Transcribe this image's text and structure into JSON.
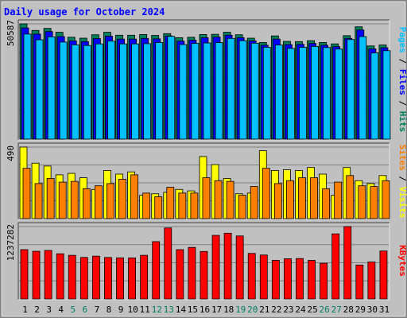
{
  "chart_data": [
    {
      "type": "bar",
      "title": "Daily usage for October 2024",
      "panel": "pages-files-hits",
      "max_label": "50587",
      "ylim": [
        0,
        50587
      ],
      "grid": true,
      "legend": [
        "Pages",
        "/",
        "Files",
        "/",
        "Hits"
      ],
      "series": [
        {
          "name": "Hits",
          "values": [
            50587,
            47700,
            48600,
            46900,
            44700,
            44300,
            45800,
            46900,
            45600,
            45600,
            45900,
            45500,
            46300,
            44500,
            44700,
            45900,
            46000,
            46900,
            45800,
            44300,
            42400,
            45300,
            42900,
            42800,
            43200,
            42400,
            41800,
            45400,
            49300,
            40900,
            41300
          ]
        },
        {
          "name": "Files",
          "values": [
            48800,
            46100,
            47200,
            45000,
            43100,
            42800,
            44100,
            45200,
            43900,
            43900,
            44200,
            44000,
            45300,
            43000,
            43400,
            44500,
            44800,
            45600,
            44500,
            43100,
            41200,
            43900,
            41500,
            41600,
            42000,
            41200,
            40600,
            44200,
            47900,
            39600,
            40100
          ]
        },
        {
          "name": "Pages",
          "values": [
            46100,
            43600,
            44900,
            42600,
            41400,
            41100,
            41800,
            43000,
            41800,
            41800,
            41900,
            42400,
            45100,
            41500,
            42000,
            42200,
            42400,
            44200,
            43200,
            42100,
            40300,
            41300,
            39800,
            40300,
            40700,
            40200,
            39500,
            43700,
            45000,
            37800,
            38800
          ]
        }
      ]
    },
    {
      "type": "bar",
      "panel": "sites-visits",
      "max_label": "490",
      "ylim": [
        0,
        490
      ],
      "grid": true,
      "legend": [
        "Sites",
        "/",
        "Visits"
      ],
      "series": [
        {
          "name": "Visits",
          "values": [
            490,
            380,
            360,
            300,
            310,
            280,
            200,
            330,
            305,
            320,
            160,
            170,
            180,
            200,
            190,
            425,
            370,
            275,
            170,
            175,
            465,
            330,
            335,
            330,
            350,
            305,
            160,
            350,
            260,
            240,
            295
          ]
        },
        {
          "name": "Sites",
          "values": [
            345,
            240,
            275,
            250,
            255,
            205,
            225,
            240,
            270,
            300,
            175,
            150,
            215,
            175,
            175,
            280,
            260,
            255,
            160,
            220,
            345,
            240,
            260,
            280,
            280,
            205,
            250,
            295,
            225,
            220,
            260
          ]
        }
      ]
    },
    {
      "type": "bar",
      "panel": "kbytes",
      "max_label": "1237282",
      "ylim": [
        0,
        1237282
      ],
      "grid": true,
      "legend": [
        "KBytes"
      ],
      "series": [
        {
          "name": "KBytes",
          "values": [
            843000,
            815000,
            829000,
            772000,
            746000,
            710000,
            732000,
            709000,
            703000,
            702000,
            746000,
            980000,
            1214000,
            843000,
            881000,
            812000,
            1087000,
            1124000,
            1077000,
            778000,
            751000,
            660000,
            687000,
            691000,
            659000,
            610000,
            1113000,
            1237282,
            580000,
            631000,
            820000
          ]
        }
      ]
    }
  ],
  "x_labels": [
    {
      "label": "1",
      "weekend": false
    },
    {
      "label": "2",
      "weekend": false
    },
    {
      "label": "3",
      "weekend": false
    },
    {
      "label": "4",
      "weekend": false
    },
    {
      "label": "5",
      "weekend": true
    },
    {
      "label": "6",
      "weekend": true
    },
    {
      "label": "7",
      "weekend": false
    },
    {
      "label": "8",
      "weekend": false
    },
    {
      "label": "9",
      "weekend": false
    },
    {
      "label": "10",
      "weekend": false
    },
    {
      "label": "11",
      "weekend": false
    },
    {
      "label": "12",
      "weekend": true
    },
    {
      "label": "13",
      "weekend": true
    },
    {
      "label": "14",
      "weekend": false
    },
    {
      "label": "15",
      "weekend": false
    },
    {
      "label": "16",
      "weekend": false
    },
    {
      "label": "17",
      "weekend": false
    },
    {
      "label": "18",
      "weekend": false
    },
    {
      "label": "19",
      "weekend": true
    },
    {
      "label": "20",
      "weekend": true
    },
    {
      "label": "21",
      "weekend": false
    },
    {
      "label": "22",
      "weekend": false
    },
    {
      "label": "23",
      "weekend": false
    },
    {
      "label": "24",
      "weekend": false
    },
    {
      "label": "25",
      "weekend": false
    },
    {
      "label": "26",
      "weekend": true
    },
    {
      "label": "27",
      "weekend": true
    },
    {
      "label": "28",
      "weekend": false
    },
    {
      "label": "29",
      "weekend": false
    },
    {
      "label": "30",
      "weekend": false
    },
    {
      "label": "31",
      "weekend": false
    }
  ],
  "colors": {
    "frame": "#808080",
    "frame_light": "#e0e0e0",
    "frame_dark": "#404040",
    "plot_bg": "#c0c0c0",
    "grid": "#808080",
    "title": "#0000ff",
    "weekday_label": "#000000",
    "weekend_label": "#00805c",
    "Hits": "#00805c",
    "Files": "#0000ff",
    "Pages": "#00c0ff",
    "Visits": "#ffff00",
    "Sites": "#ff8000",
    "KBytes": "#ff0000",
    "legend_slash": "#000000"
  }
}
